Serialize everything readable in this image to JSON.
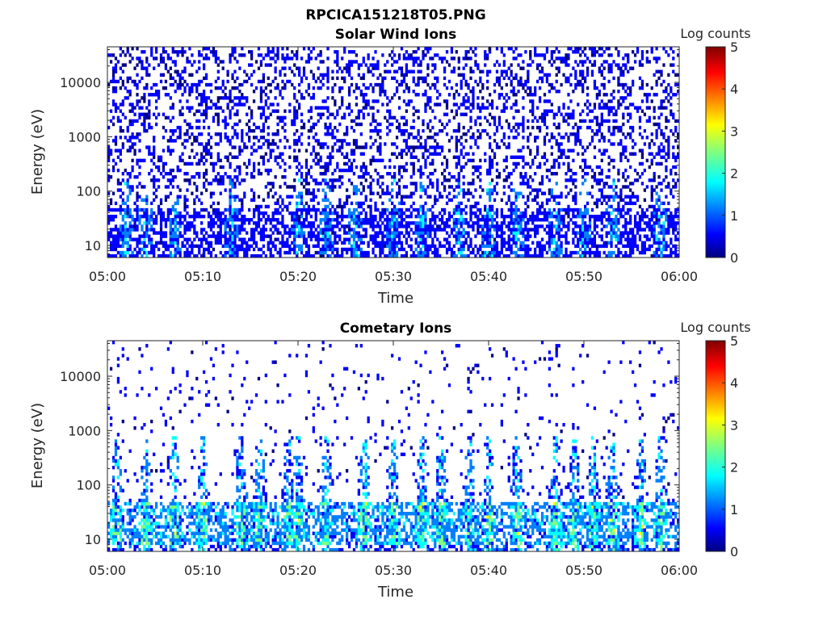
{
  "figure": {
    "title": "RPCICA151218T05.PNG"
  },
  "colormap": [
    "#00007f",
    "#0000ff",
    "#007fff",
    "#00ffff",
    "#7fff7f",
    "#ffff00",
    "#ff7f00",
    "#ff0000",
    "#7f0000"
  ],
  "chart_data": [
    {
      "type": "heatmap",
      "title": "Solar Wind Ions",
      "xlabel": "Time",
      "ylabel": "Energy (eV)",
      "x_ticks": [
        "05:00",
        "05:10",
        "05:20",
        "05:30",
        "05:40",
        "05:50",
        "06:00"
      ],
      "x_range": [
        "05:00",
        "06:00"
      ],
      "y_scale": "log",
      "y_ticks": [
        10,
        100,
        1000,
        10000
      ],
      "y_tick_labels": [
        "10",
        "100",
        "1000",
        "10000"
      ],
      "y_range": [
        6,
        45000
      ],
      "colorbar": {
        "label": "Log counts",
        "range": [
          0,
          5
        ],
        "ticks": [
          "0",
          "1",
          "2",
          "3",
          "4",
          "5"
        ]
      },
      "grid": false,
      "description": "Sparse low-count (log counts ~0-1.5) signal across all energies; denser bursts below ~100 eV with periodic spikes",
      "burst_times": [
        "05:02",
        "05:04",
        "05:07",
        "05:13",
        "05:20",
        "05:23",
        "05:26",
        "05:30",
        "05:33",
        "05:37",
        "05:40",
        "05:43",
        "05:47",
        "05:50",
        "05:53",
        "05:58"
      ],
      "peak_log_counts": 2.0
    },
    {
      "type": "heatmap",
      "title": "Cometary Ions",
      "xlabel": "Time",
      "ylabel": "Energy (eV)",
      "x_ticks": [
        "05:00",
        "05:10",
        "05:20",
        "05:30",
        "05:40",
        "05:50",
        "06:00"
      ],
      "x_range": [
        "05:00",
        "06:00"
      ],
      "y_scale": "log",
      "y_ticks": [
        10,
        100,
        1000,
        10000
      ],
      "y_tick_labels": [
        "10",
        "100",
        "1000",
        "10000"
      ],
      "y_range": [
        6,
        45000
      ],
      "colorbar": {
        "label": "Log counts",
        "range": [
          0,
          5
        ],
        "ticks": [
          "0",
          "1",
          "2",
          "3",
          "4",
          "5"
        ]
      },
      "grid": false,
      "description": "Strong signal (log counts up to ~3) concentrated between ~8 and ~50 eV, periodic bursts extending to a few hundred eV; sparse points at higher energies",
      "burst_times": [
        "05:01",
        "05:04",
        "05:07",
        "05:10",
        "05:14",
        "05:16",
        "05:19",
        "05:20",
        "05:23",
        "05:27",
        "05:30",
        "05:33",
        "05:35",
        "05:38",
        "05:40",
        "05:43",
        "05:47",
        "05:49",
        "05:51",
        "05:53",
        "05:56",
        "05:58"
      ],
      "peak_log_counts": 3.0
    }
  ]
}
